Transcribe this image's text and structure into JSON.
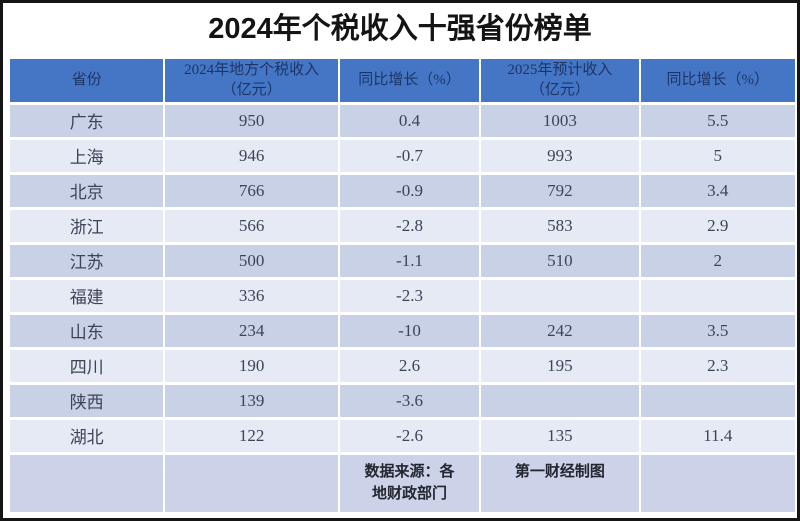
{
  "title": "2024年个税收入十强省份榜单",
  "table": {
    "headers": [
      {
        "line1": "省份",
        "line2": ""
      },
      {
        "line1": "2024年地方个税收入",
        "line2": "（亿元）"
      },
      {
        "line1": "同比增长（%）",
        "line2": ""
      },
      {
        "line1": "2025年预计收入",
        "line2": "（亿元）"
      },
      {
        "line1": "同比增长（%）",
        "line2": ""
      }
    ],
    "rows": [
      {
        "province": "广东",
        "income_2024": "950",
        "yoy_2024": "0.4",
        "income_2025": "1003",
        "yoy_2025": "5.5"
      },
      {
        "province": "上海",
        "income_2024": "946",
        "yoy_2024": "-0.7",
        "income_2025": "993",
        "yoy_2025": "5"
      },
      {
        "province": "北京",
        "income_2024": "766",
        "yoy_2024": "-0.9",
        "income_2025": "792",
        "yoy_2025": "3.4"
      },
      {
        "province": "浙江",
        "income_2024": "566",
        "yoy_2024": "-2.8",
        "income_2025": "583",
        "yoy_2025": "2.9"
      },
      {
        "province": "江苏",
        "income_2024": "500",
        "yoy_2024": "-1.1",
        "income_2025": "510",
        "yoy_2025": "2"
      },
      {
        "province": "福建",
        "income_2024": "336",
        "yoy_2024": "-2.3",
        "income_2025": "",
        "yoy_2025": ""
      },
      {
        "province": "山东",
        "income_2024": "234",
        "yoy_2024": "-10",
        "income_2025": "242",
        "yoy_2025": "3.5"
      },
      {
        "province": "四川",
        "income_2024": "190",
        "yoy_2024": "2.6",
        "income_2025": "195",
        "yoy_2025": "2.3"
      },
      {
        "province": "陕西",
        "income_2024": "139",
        "yoy_2024": "-3.6",
        "income_2025": "",
        "yoy_2025": ""
      },
      {
        "province": "湖北",
        "income_2024": "122",
        "yoy_2024": "-2.6",
        "income_2025": "135",
        "yoy_2025": "11.4"
      }
    ],
    "footer": {
      "source_line1": "数据来源：各",
      "source_line2": "地财政部门",
      "credit": "第一财经制图"
    }
  },
  "colors": {
    "header_bg": "#4576c5",
    "header_text": "#1d3566",
    "row_dark": "#c9d1e7",
    "row_light": "#e6eaf4",
    "footer_bg": "#ccd3e9",
    "data_text": "#3d4358",
    "frame_border": "#151515"
  },
  "chart_data": {
    "type": "table",
    "title": "2024年个税收入十强省份榜单",
    "columns": [
      "省份",
      "2024年地方个税收入（亿元）",
      "同比增长（%）",
      "2025年预计收入（亿元）",
      "同比增长（%）"
    ],
    "rows": [
      [
        "广东",
        950,
        0.4,
        1003,
        5.5
      ],
      [
        "上海",
        946,
        -0.7,
        993,
        5
      ],
      [
        "北京",
        766,
        -0.9,
        792,
        3.4
      ],
      [
        "浙江",
        566,
        -2.8,
        583,
        2.9
      ],
      [
        "江苏",
        500,
        -1.1,
        510,
        2
      ],
      [
        "福建",
        336,
        -2.3,
        null,
        null
      ],
      [
        "山东",
        234,
        -10,
        242,
        3.5
      ],
      [
        "四川",
        190,
        2.6,
        195,
        2.3
      ],
      [
        "陕西",
        139,
        -3.6,
        null,
        null
      ],
      [
        "湖北",
        122,
        -2.6,
        135,
        11.4
      ]
    ],
    "source": "数据来源：各地财政部门",
    "credit": "第一财经制图"
  }
}
